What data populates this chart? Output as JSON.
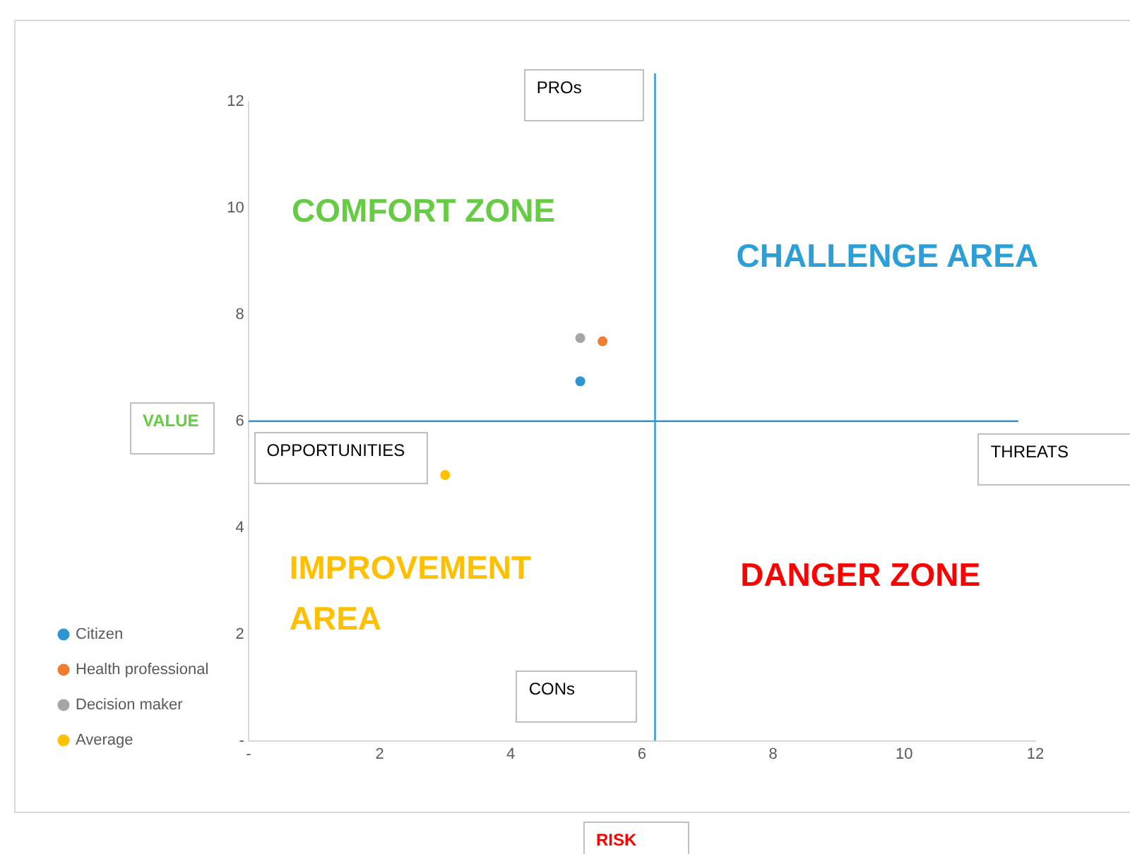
{
  "chart_data": {
    "type": "scatter",
    "xlabel": "RISK",
    "ylabel": "VALUE",
    "series": [
      {
        "name": "Citizen",
        "color": "#2e95d3",
        "x": [
          5.06
        ],
        "values": [
          6.75
        ]
      },
      {
        "name": "Health professional",
        "color": "#f07c30",
        "x": [
          5.4
        ],
        "values": [
          7.5
        ]
      },
      {
        "name": "Decision maker",
        "color": "#a5a5a5",
        "x": [
          5.06
        ],
        "values": [
          7.56
        ]
      },
      {
        "name": "Average",
        "color": "#ffc000",
        "x": [
          3.0
        ],
        "values": [
          4.99
        ]
      }
    ],
    "xlim": [
      0,
      12
    ],
    "xticks": [
      {
        "value": 0,
        "label": "-"
      },
      2,
      4,
      6,
      8,
      10,
      12
    ],
    "ylim": [
      0,
      12
    ],
    "yticks": [
      {
        "value": 0,
        "label": "-"
      },
      2,
      4,
      6,
      8,
      10,
      12
    ],
    "ref_lines": [
      {
        "axis": "x",
        "value": 6.2,
        "color": "#2e95d3"
      },
      {
        "axis": "y",
        "value": 6,
        "color": "#2e95d3"
      }
    ],
    "annotations": [
      "COMFORT ZONE",
      "CHALLENGE AREA",
      "IMPROVEMENT AREA",
      "DANGER ZONE",
      "PROs",
      "CONs",
      "OPPORTUNITIES",
      "THREATS"
    ],
    "grid": false,
    "legend": "bottom left",
    "marker": "circle"
  }
}
